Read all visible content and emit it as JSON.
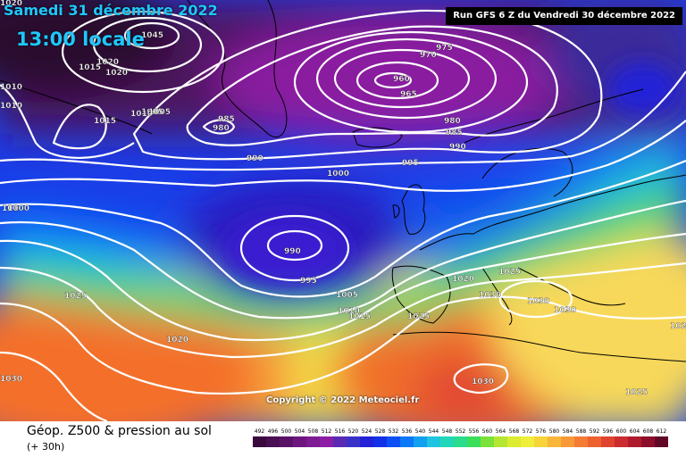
{
  "title": {
    "date": "Samedi 31 décembre 2022",
    "time": "13:00 locale"
  },
  "run_info": "Run GFS 6 Z du Vendredi 30 décembre 2022",
  "copyright": "Copyright © 2022 Meteociel.fr",
  "footer": {
    "product": "Géop. Z500 & pression au sol",
    "lead_time": "(+ 30h)"
  },
  "legend": {
    "values": [
      "492",
      "496",
      "500",
      "504",
      "508",
      "512",
      "516",
      "520",
      "524",
      "528",
      "532",
      "536",
      "540",
      "544",
      "548",
      "552",
      "556",
      "560",
      "564",
      "568",
      "572",
      "576",
      "580",
      "584",
      "588",
      "592",
      "596",
      "600",
      "604",
      "608",
      "612"
    ],
    "colors": [
      "#3a0a3e",
      "#4a0e52",
      "#5a1268",
      "#6c167e",
      "#7e1a92",
      "#8c1ea6",
      "#5a2ab4",
      "#3a32c8",
      "#2222d8",
      "#1230e8",
      "#0a50f4",
      "#0a78f8",
      "#12a0f0",
      "#1ec4e0",
      "#22d6b8",
      "#2adc8c",
      "#3ade5a",
      "#7ae23a",
      "#b4e632",
      "#dcec30",
      "#f0ee3a",
      "#f6d43a",
      "#f8b63a",
      "#f89a3a",
      "#f47c34",
      "#ee602e",
      "#e04430",
      "#cc2c30",
      "#b01a2e",
      "#8c0e2a",
      "#600826"
    ]
  },
  "isobar_labels": [
    "1045",
    "1020",
    "1015",
    "1020",
    "1010",
    "1005",
    "1010",
    "1010",
    "1015",
    "1010",
    "1005",
    "985",
    "980",
    "990",
    "960",
    "965",
    "975",
    "970",
    "980",
    "985",
    "990",
    "995",
    "1000",
    "1000",
    "990",
    "995",
    "1005",
    "1010",
    "1015",
    "1025",
    "1020",
    "1025",
    "1020",
    "1030",
    "1030",
    "1030",
    "1025",
    "1025",
    "1030",
    "1030",
    "1020",
    "1020"
  ]
}
